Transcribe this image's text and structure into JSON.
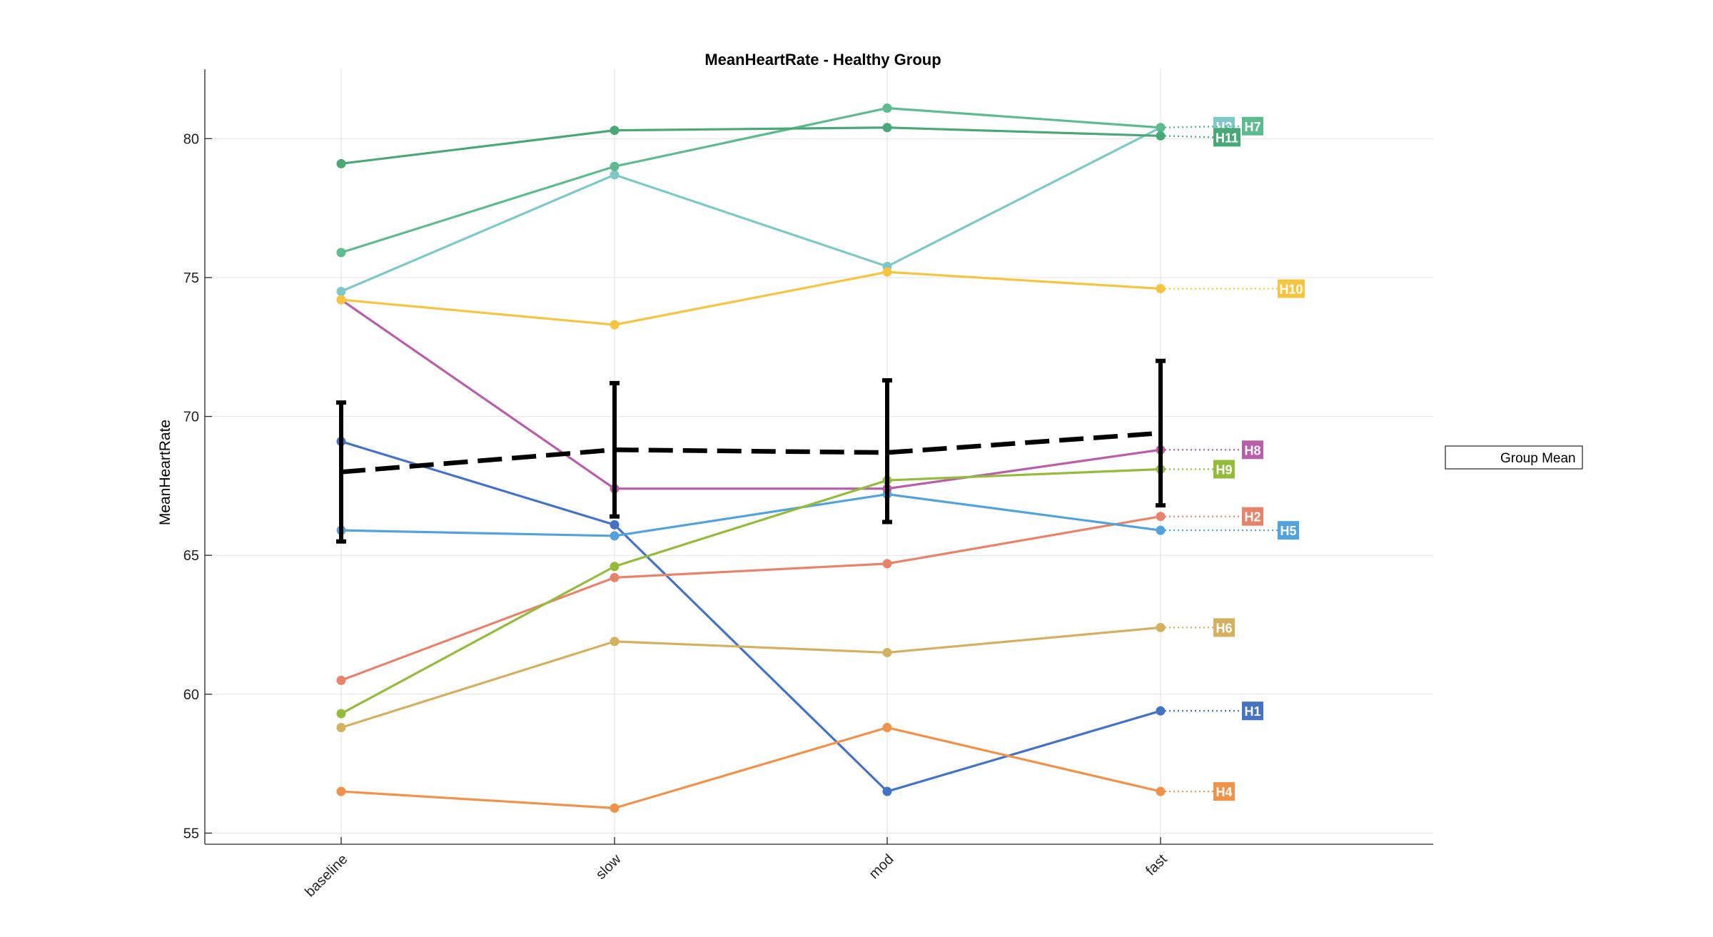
{
  "chart_data": {
    "type": "line",
    "title": "MeanHeartRate - Healthy Group",
    "xlabel": "",
    "ylabel": "MeanHeartRate",
    "categories": [
      "baseline",
      "slow",
      "mod",
      "fast"
    ],
    "ylim": [
      54.6,
      82.5
    ],
    "yticks": [
      55,
      60,
      65,
      70,
      75,
      80
    ],
    "grid": true,
    "series": [
      {
        "name": "H1",
        "color": "#4472c4",
        "values": [
          69.1,
          66.1,
          56.5,
          59.4
        ]
      },
      {
        "name": "H2",
        "color": "#e8836b",
        "values": [
          60.5,
          64.2,
          64.7,
          66.4
        ]
      },
      {
        "name": "H3",
        "color": "#7ec8c8",
        "values": [
          74.5,
          78.7,
          75.4,
          80.4
        ]
      },
      {
        "name": "H4",
        "color": "#f0924a",
        "values": [
          56.5,
          55.9,
          58.8,
          56.5
        ]
      },
      {
        "name": "H5",
        "color": "#52a3dc",
        "values": [
          65.9,
          65.7,
          67.2,
          65.9
        ]
      },
      {
        "name": "H6",
        "color": "#d4b061",
        "values": [
          58.8,
          61.9,
          61.5,
          62.4
        ]
      },
      {
        "name": "H7",
        "color": "#5dbb8f",
        "values": [
          75.9,
          79.0,
          81.1,
          80.4
        ]
      },
      {
        "name": "H8",
        "color": "#b85fa8",
        "values": [
          74.2,
          67.4,
          67.4,
          68.8
        ]
      },
      {
        "name": "H9",
        "color": "#95bb3c",
        "values": [
          59.3,
          64.6,
          67.7,
          68.1
        ]
      },
      {
        "name": "H10",
        "color": "#f5c542",
        "values": [
          74.2,
          73.3,
          75.2,
          74.6
        ]
      },
      {
        "name": "H11",
        "color": "#4aa777",
        "values": [
          79.1,
          80.3,
          80.4,
          80.1
        ]
      }
    ],
    "mean": {
      "name": "Group Mean",
      "values": [
        68.0,
        68.8,
        68.7,
        69.4
      ],
      "lower": [
        65.5,
        66.4,
        66.2,
        66.8
      ],
      "upper": [
        70.5,
        71.2,
        71.3,
        72.0
      ]
    },
    "tag_order_at_fast": [
      "H3",
      "H7",
      "H11",
      "H10",
      "H8",
      "H9",
      "H2",
      "H5",
      "H6",
      "H1",
      "H4"
    ],
    "legend": {
      "entries": [
        "Group Mean"
      ],
      "placement": "right"
    }
  }
}
